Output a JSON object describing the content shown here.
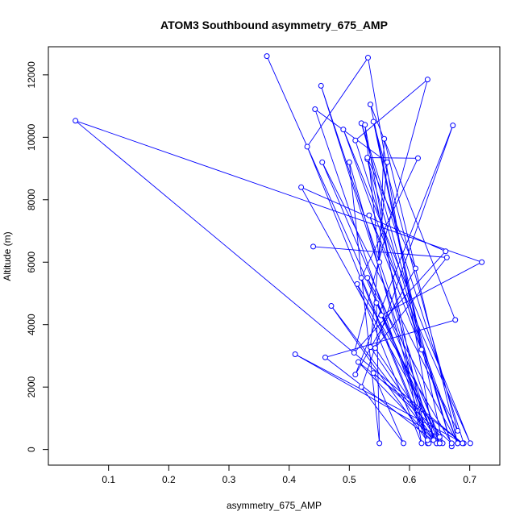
{
  "chart_data": {
    "type": "line",
    "title": "ATOM3 Southbound asymmetry_675_AMP",
    "xlabel": "asymmetry_675_AMP",
    "ylabel": "Altitude (m)",
    "xlim": [
      0.0,
      0.75
    ],
    "ylim": [
      -500,
      12900
    ],
    "xticks": [
      0.1,
      0.2,
      0.3,
      0.4,
      0.5,
      0.6,
      0.7
    ],
    "yticks": [
      0,
      2000,
      4000,
      6000,
      8000,
      10000,
      12000
    ],
    "grid": false,
    "legend": "none",
    "markers": "open-circle",
    "series": [
      {
        "color": "#0000ff",
        "x": [
          0.363,
          0.65,
          0.453,
          0.64,
          0.531,
          0.43,
          0.63,
          0.53,
          0.67,
          0.52,
          0.69,
          0.41,
          0.65,
          0.455,
          0.68,
          0.54,
          0.62,
          0.51,
          0.63,
          0.508,
          0.66,
          0.42,
          0.655,
          0.535,
          0.676,
          0.46,
          0.645,
          0.535,
          0.563,
          0.443,
          0.632,
          0.47,
          0.64,
          0.515,
          0.688,
          0.045,
          0.72,
          0.553,
          0.645,
          0.53,
          0.68,
          0.533,
          0.701,
          0.49,
          0.68,
          0.558,
          0.55,
          0.526,
          0.62,
          0.513,
          0.67,
          0.54,
          0.59,
          0.52,
          0.672,
          0.51,
          0.61,
          0.53,
          0.614,
          0.52,
          0.63,
          0.5,
          0.55,
          0.545,
          0.65,
          0.543,
          0.662,
          0.44
        ],
        "y": [
          12600,
          200,
          11650,
          300,
          12550,
          9700,
          200,
          9300,
          100,
          10450,
          200,
          3050,
          400,
          9200,
          600,
          10500,
          3200,
          9900,
          11850,
          3100,
          6350,
          8400,
          200,
          11050,
          4150,
          2950,
          200,
          3280,
          9200,
          10900,
          200,
          4600,
          300,
          2800,
          200,
          10530,
          6000,
          4300,
          200,
          5500,
          200,
          7500,
          200,
          10250,
          200,
          9950,
          6000,
          10400,
          200,
          5300,
          200,
          2450,
          200,
          2000,
          10380,
          2400,
          5800,
          9350,
          9330,
          5500,
          300,
          9200,
          200,
          4700,
          200,
          3250,
          6150,
          6500
        ]
      }
    ]
  }
}
